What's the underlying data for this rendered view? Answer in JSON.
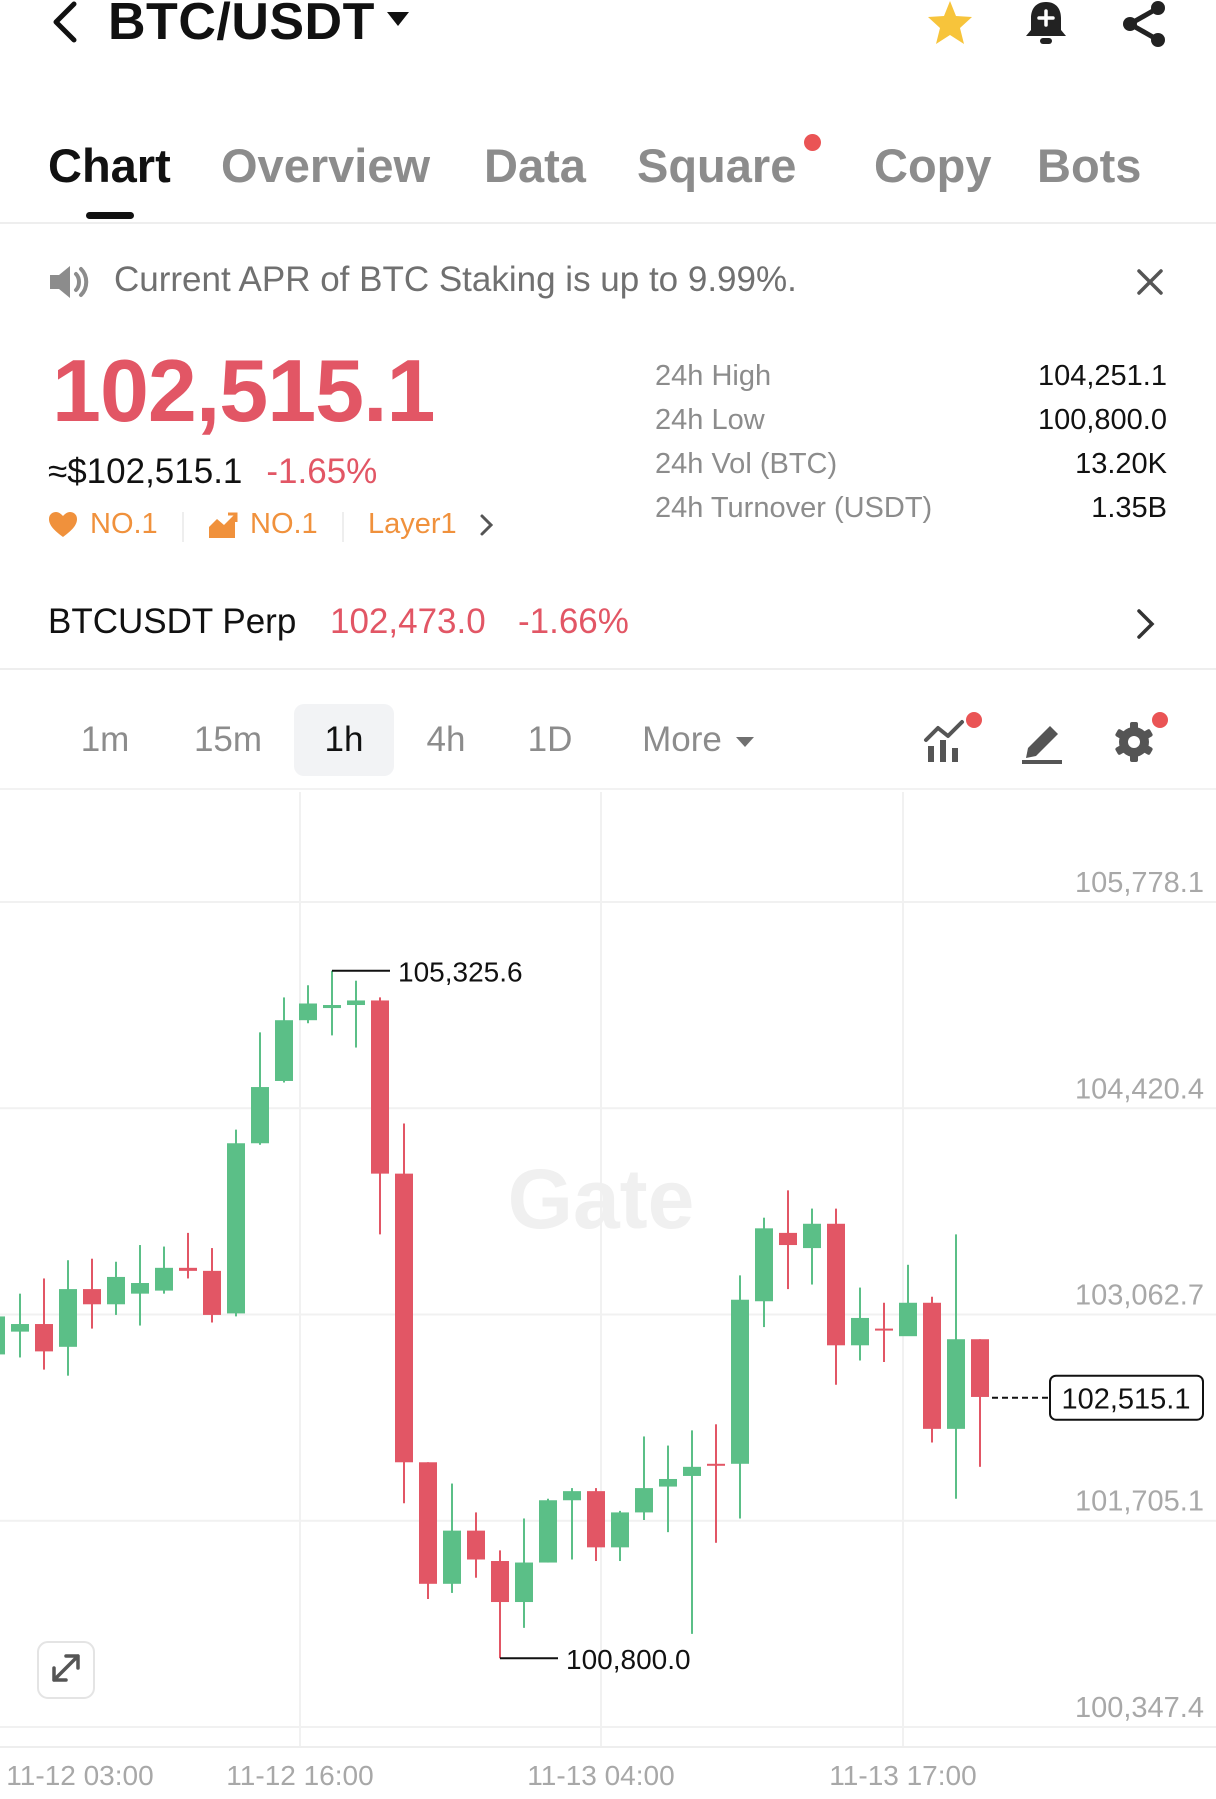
{
  "header": {
    "pair": "BTC/USDT",
    "icons": [
      "back-arrow-icon",
      "caret-down-icon",
      "star-icon",
      "bell-icon",
      "share-icon"
    ],
    "star_color": "#f7c43b"
  },
  "tabs": [
    {
      "label": "Chart",
      "active": true
    },
    {
      "label": "Overview"
    },
    {
      "label": "Data"
    },
    {
      "label": "Square",
      "dot": true
    },
    {
      "label": "Copy"
    },
    {
      "label": "Bots"
    }
  ],
  "notice": {
    "text": "Current APR of BTC Staking is up to 9.99%."
  },
  "price": {
    "last": "102,515.1",
    "usd": "≈$102,515.1",
    "change": "-1.65%",
    "down_color": "#e25665",
    "up_color": "#5bbf87"
  },
  "tags": [
    {
      "label": "NO.1",
      "icon": "heart-icon"
    },
    {
      "label": "NO.1",
      "icon": "chart-icon"
    },
    {
      "label": "Layer1"
    }
  ],
  "stats": [
    {
      "label": "24h High",
      "value": "104,251.1"
    },
    {
      "label": "24h Low",
      "value": "100,800.0"
    },
    {
      "label": "24h Vol (BTC)",
      "value": "13.20K"
    },
    {
      "label": "24h Turnover (USDT)",
      "value": "1.35B"
    }
  ],
  "perp": {
    "name": "BTCUSDT Perp",
    "price": "102,473.0",
    "change": "-1.66%"
  },
  "intervals": [
    {
      "label": "1m"
    },
    {
      "label": "15m"
    },
    {
      "label": "1h",
      "active": true
    },
    {
      "label": "4h"
    },
    {
      "label": "1D"
    },
    {
      "label": "More"
    }
  ],
  "chart_data": {
    "type": "candlestick",
    "watermark": "Gate",
    "y_ticks": [
      "105,778.1",
      "104,420.4",
      "103,062.7",
      "101,705.1",
      "100,347.4"
    ],
    "ylim": [
      100347.4,
      105778.1
    ],
    "x_ticks": [
      "11-12 03:00",
      "11-12 16:00",
      "11-13 04:00",
      "11-13 17:00"
    ],
    "last_price": "102,515.1",
    "max_label": "105,325.6",
    "min_label": "100,800.0",
    "max_value": 105325.6,
    "min_value": 100800.0,
    "candles": [
      {
        "o": 102800,
        "c": 103050,
        "h": 103100,
        "l": 102700
      },
      {
        "o": 102950,
        "c": 103000,
        "h": 103200,
        "l": 102780
      },
      {
        "o": 103000,
        "c": 102820,
        "h": 103300,
        "l": 102700
      },
      {
        "o": 102850,
        "c": 103230,
        "h": 103420,
        "l": 102660
      },
      {
        "o": 103230,
        "c": 103130,
        "h": 103430,
        "l": 102970
      },
      {
        "o": 103130,
        "c": 103310,
        "h": 103410,
        "l": 103060
      },
      {
        "o": 103200,
        "c": 103270,
        "h": 103520,
        "l": 102990
      },
      {
        "o": 103220,
        "c": 103370,
        "h": 103510,
        "l": 103200
      },
      {
        "o": 103370,
        "c": 103350,
        "h": 103600,
        "l": 103300
      },
      {
        "o": 103350,
        "c": 103060,
        "h": 103500,
        "l": 103010
      },
      {
        "o": 103070,
        "c": 104190,
        "h": 104280,
        "l": 103050
      },
      {
        "o": 104190,
        "c": 104560,
        "h": 104920,
        "l": 104180
      },
      {
        "o": 104600,
        "c": 105000,
        "h": 105150,
        "l": 104590
      },
      {
        "o": 105000,
        "c": 105110,
        "h": 105230,
        "l": 104980
      },
      {
        "o": 105080,
        "c": 105100,
        "h": 105325.6,
        "l": 104900
      },
      {
        "o": 105100,
        "c": 105130,
        "h": 105260,
        "l": 104820
      },
      {
        "o": 105130,
        "c": 103990,
        "h": 105150,
        "l": 103590
      },
      {
        "o": 103990,
        "c": 102090,
        "h": 104320,
        "l": 101820
      },
      {
        "o": 102090,
        "c": 101290,
        "h": 102090,
        "l": 101190
      },
      {
        "o": 101290,
        "c": 101640,
        "h": 101950,
        "l": 101230
      },
      {
        "o": 101640,
        "c": 101450,
        "h": 101760,
        "l": 101330
      },
      {
        "o": 101440,
        "c": 101170,
        "h": 101510,
        "l": 100800
      },
      {
        "o": 101170,
        "c": 101430,
        "h": 101720,
        "l": 101000
      },
      {
        "o": 101430,
        "c": 101840,
        "h": 101850,
        "l": 101430
      },
      {
        "o": 101840,
        "c": 101900,
        "h": 101920,
        "l": 101450
      },
      {
        "o": 101900,
        "c": 101530,
        "h": 101920,
        "l": 101440
      },
      {
        "o": 101530,
        "c": 101760,
        "h": 101770,
        "l": 101440
      },
      {
        "o": 101760,
        "c": 101920,
        "h": 102260,
        "l": 101710
      },
      {
        "o": 101930,
        "c": 101980,
        "h": 102200,
        "l": 101630
      },
      {
        "o": 102000,
        "c": 102060,
        "h": 102300,
        "l": 100960
      },
      {
        "o": 102080,
        "c": 102070,
        "h": 102340,
        "l": 101560
      },
      {
        "o": 102080,
        "c": 103160,
        "h": 103320,
        "l": 101720
      },
      {
        "o": 103150,
        "c": 103630,
        "h": 103700,
        "l": 102980
      },
      {
        "o": 103600,
        "c": 103520,
        "h": 103880,
        "l": 103230
      },
      {
        "o": 103500,
        "c": 103660,
        "h": 103760,
        "l": 103260
      },
      {
        "o": 103660,
        "c": 102860,
        "h": 103760,
        "l": 102600
      },
      {
        "o": 102860,
        "c": 103040,
        "h": 103240,
        "l": 102760
      },
      {
        "o": 102970,
        "c": 102960,
        "h": 103140,
        "l": 102750
      },
      {
        "o": 102920,
        "c": 103140,
        "h": 103390,
        "l": 102940
      },
      {
        "o": 103140,
        "c": 102310,
        "h": 103180,
        "l": 102220
      },
      {
        "o": 102310,
        "c": 102900,
        "h": 103590,
        "l": 101850
      },
      {
        "o": 102900,
        "c": 102520,
        "h": 102900,
        "l": 102060
      }
    ]
  }
}
